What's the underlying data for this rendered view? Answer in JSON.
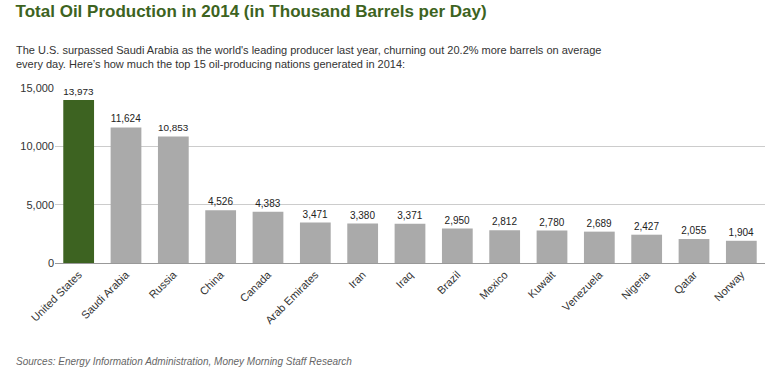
{
  "chart_data": {
    "type": "bar",
    "title": "Total Oil Production in 2014 (in Thousand Barrels per Day)",
    "subtitle": "The U.S. surpassed Saudi Arabia as the world's leading producer last year, churning out 20.2% more barrels on average\nevery day. Here’s how much the top 15 oil-producing nations generated in 2014:",
    "source": "Sources: Energy Information Administration, Money Morning Staff Research",
    "categories": [
      "United States",
      "Saudi Arabia",
      "Russia",
      "China",
      "Canada",
      "Arab Emirates",
      "Iran",
      "Iraq",
      "Brazil",
      "Mexico",
      "Kuwait",
      "Venezuela",
      "Nigeria",
      "Qatar",
      "Norway"
    ],
    "values": [
      13973,
      11624,
      10853,
      4526,
      4383,
      3471,
      3380,
      3371,
      2950,
      2812,
      2780,
      2689,
      2427,
      2055,
      1904
    ],
    "value_labels": [
      "13,973",
      "11,624",
      "10,853",
      "4,526",
      "4,383",
      "3,471",
      "3,380",
      "3,371",
      "2,950",
      "2,812",
      "2,780",
      "2,689",
      "2,427",
      "2,055",
      "1,904"
    ],
    "data_labels": true,
    "colors": [
      "#3d6321",
      "#aaaaaa",
      "#aaaaaa",
      "#aaaaaa",
      "#aaaaaa",
      "#aaaaaa",
      "#aaaaaa",
      "#aaaaaa",
      "#aaaaaa",
      "#aaaaaa",
      "#aaaaaa",
      "#aaaaaa",
      "#aaaaaa",
      "#aaaaaa",
      "#aaaaaa"
    ],
    "ylim": [
      0,
      15000
    ],
    "yticks": [
      0,
      {
        "value": 5000,
        "label": "5,000"
      },
      {
        "value": 10000,
        "label": "10,000"
      },
      {
        "value": 15000,
        "label": "15,000"
      }
    ],
    "grid": true
  }
}
